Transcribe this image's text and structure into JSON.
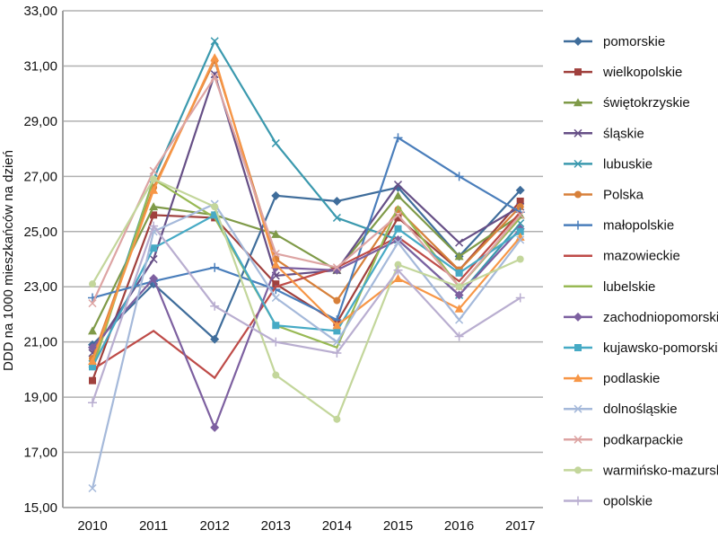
{
  "chart_data": {
    "type": "line",
    "title": "",
    "xlabel": "",
    "ylabel": "DDD na 1000 mieszkańców na dzień",
    "ylim": [
      15,
      33
    ],
    "yticks": [
      "15,00",
      "17,00",
      "19,00",
      "21,00",
      "23,00",
      "25,00",
      "27,00",
      "29,00",
      "31,00",
      "33,00"
    ],
    "categories": [
      "2010",
      "2011",
      "2012",
      "2013",
      "2014",
      "2015",
      "2016",
      "2017"
    ],
    "grid": true,
    "legend_position": "right",
    "series": [
      {
        "name": "pomorskie",
        "color": "#3F6D9B",
        "marker": "diamond",
        "values": [
          20.9,
          23.1,
          21.1,
          26.3,
          26.1,
          26.6,
          24.1,
          26.5
        ]
      },
      {
        "name": "wielkopolskie",
        "color": "#A0403D",
        "marker": "square",
        "values": [
          19.6,
          25.6,
          25.5,
          23.1,
          21.7,
          25.5,
          23.6,
          26.1
        ]
      },
      {
        "name": "świętokrzyskie",
        "color": "#7F9A48",
        "marker": "triangle",
        "values": [
          21.4,
          25.9,
          25.6,
          24.9,
          23.6,
          26.3,
          24.1,
          25.6
        ]
      },
      {
        "name": "śląskie",
        "color": "#664F86",
        "marker": "x",
        "values": [
          20.6,
          24.0,
          30.7,
          23.4,
          23.6,
          26.7,
          24.6,
          25.9
        ]
      },
      {
        "name": "lubuskie",
        "color": "#3B99AE",
        "marker": "x",
        "values": [
          20.2,
          26.9,
          31.9,
          28.2,
          25.5,
          24.7,
          22.7,
          25.3
        ]
      },
      {
        "name": "Polska",
        "color": "#D7803A",
        "marker": "circle",
        "values": [
          20.4,
          26.6,
          31.2,
          24.0,
          22.5,
          25.8,
          23.6,
          25.9
        ]
      },
      {
        "name": "małopolskie",
        "color": "#4A7EBB",
        "marker": "plus",
        "values": [
          22.6,
          23.2,
          23.7,
          22.9,
          21.8,
          28.4,
          27.0,
          25.7
        ]
      },
      {
        "name": "mazowieckie",
        "color": "#BE4B48",
        "marker": "none",
        "values": [
          20.0,
          21.4,
          19.7,
          23.0,
          23.7,
          24.8,
          23.2,
          25.7
        ]
      },
      {
        "name": "lubelskie",
        "color": "#98B954",
        "marker": "none",
        "values": [
          20.0,
          26.9,
          25.5,
          21.6,
          20.8,
          25.9,
          23.0,
          25.5
        ]
      },
      {
        "name": "zachodniopomorskie",
        "color": "#7D60A0",
        "marker": "diamond",
        "values": [
          20.8,
          23.3,
          17.9,
          23.7,
          23.6,
          24.7,
          22.7,
          25.1
        ]
      },
      {
        "name": "kujawsko-pomorskie",
        "color": "#46AAC5",
        "marker": "square",
        "values": [
          20.1,
          24.4,
          25.6,
          21.6,
          21.4,
          25.1,
          23.5,
          25.0
        ]
      },
      {
        "name": "podlaskie",
        "color": "#F79646",
        "marker": "triangle",
        "values": [
          20.3,
          26.5,
          31.3,
          23.8,
          21.6,
          23.3,
          22.2,
          24.8
        ]
      },
      {
        "name": "dolnośląskie",
        "color": "#A5B9DA",
        "marker": "x",
        "values": [
          15.7,
          25.0,
          26.0,
          22.6,
          21.0,
          24.6,
          21.8,
          24.7
        ]
      },
      {
        "name": "podkarpackie",
        "color": "#DDA4A3",
        "marker": "x",
        "values": [
          22.4,
          27.2,
          30.6,
          24.2,
          23.7,
          25.6,
          23.0,
          25.6
        ]
      },
      {
        "name": "warmińsko-mazurskie",
        "color": "#C3D69B",
        "marker": "circle",
        "values": [
          23.1,
          26.9,
          25.9,
          19.8,
          18.2,
          23.8,
          23.0,
          24.0
        ]
      },
      {
        "name": "opolskie",
        "color": "#B9AED0",
        "marker": "plus",
        "values": [
          18.8,
          25.2,
          22.3,
          21.0,
          20.6,
          23.6,
          21.2,
          22.6
        ]
      }
    ]
  }
}
